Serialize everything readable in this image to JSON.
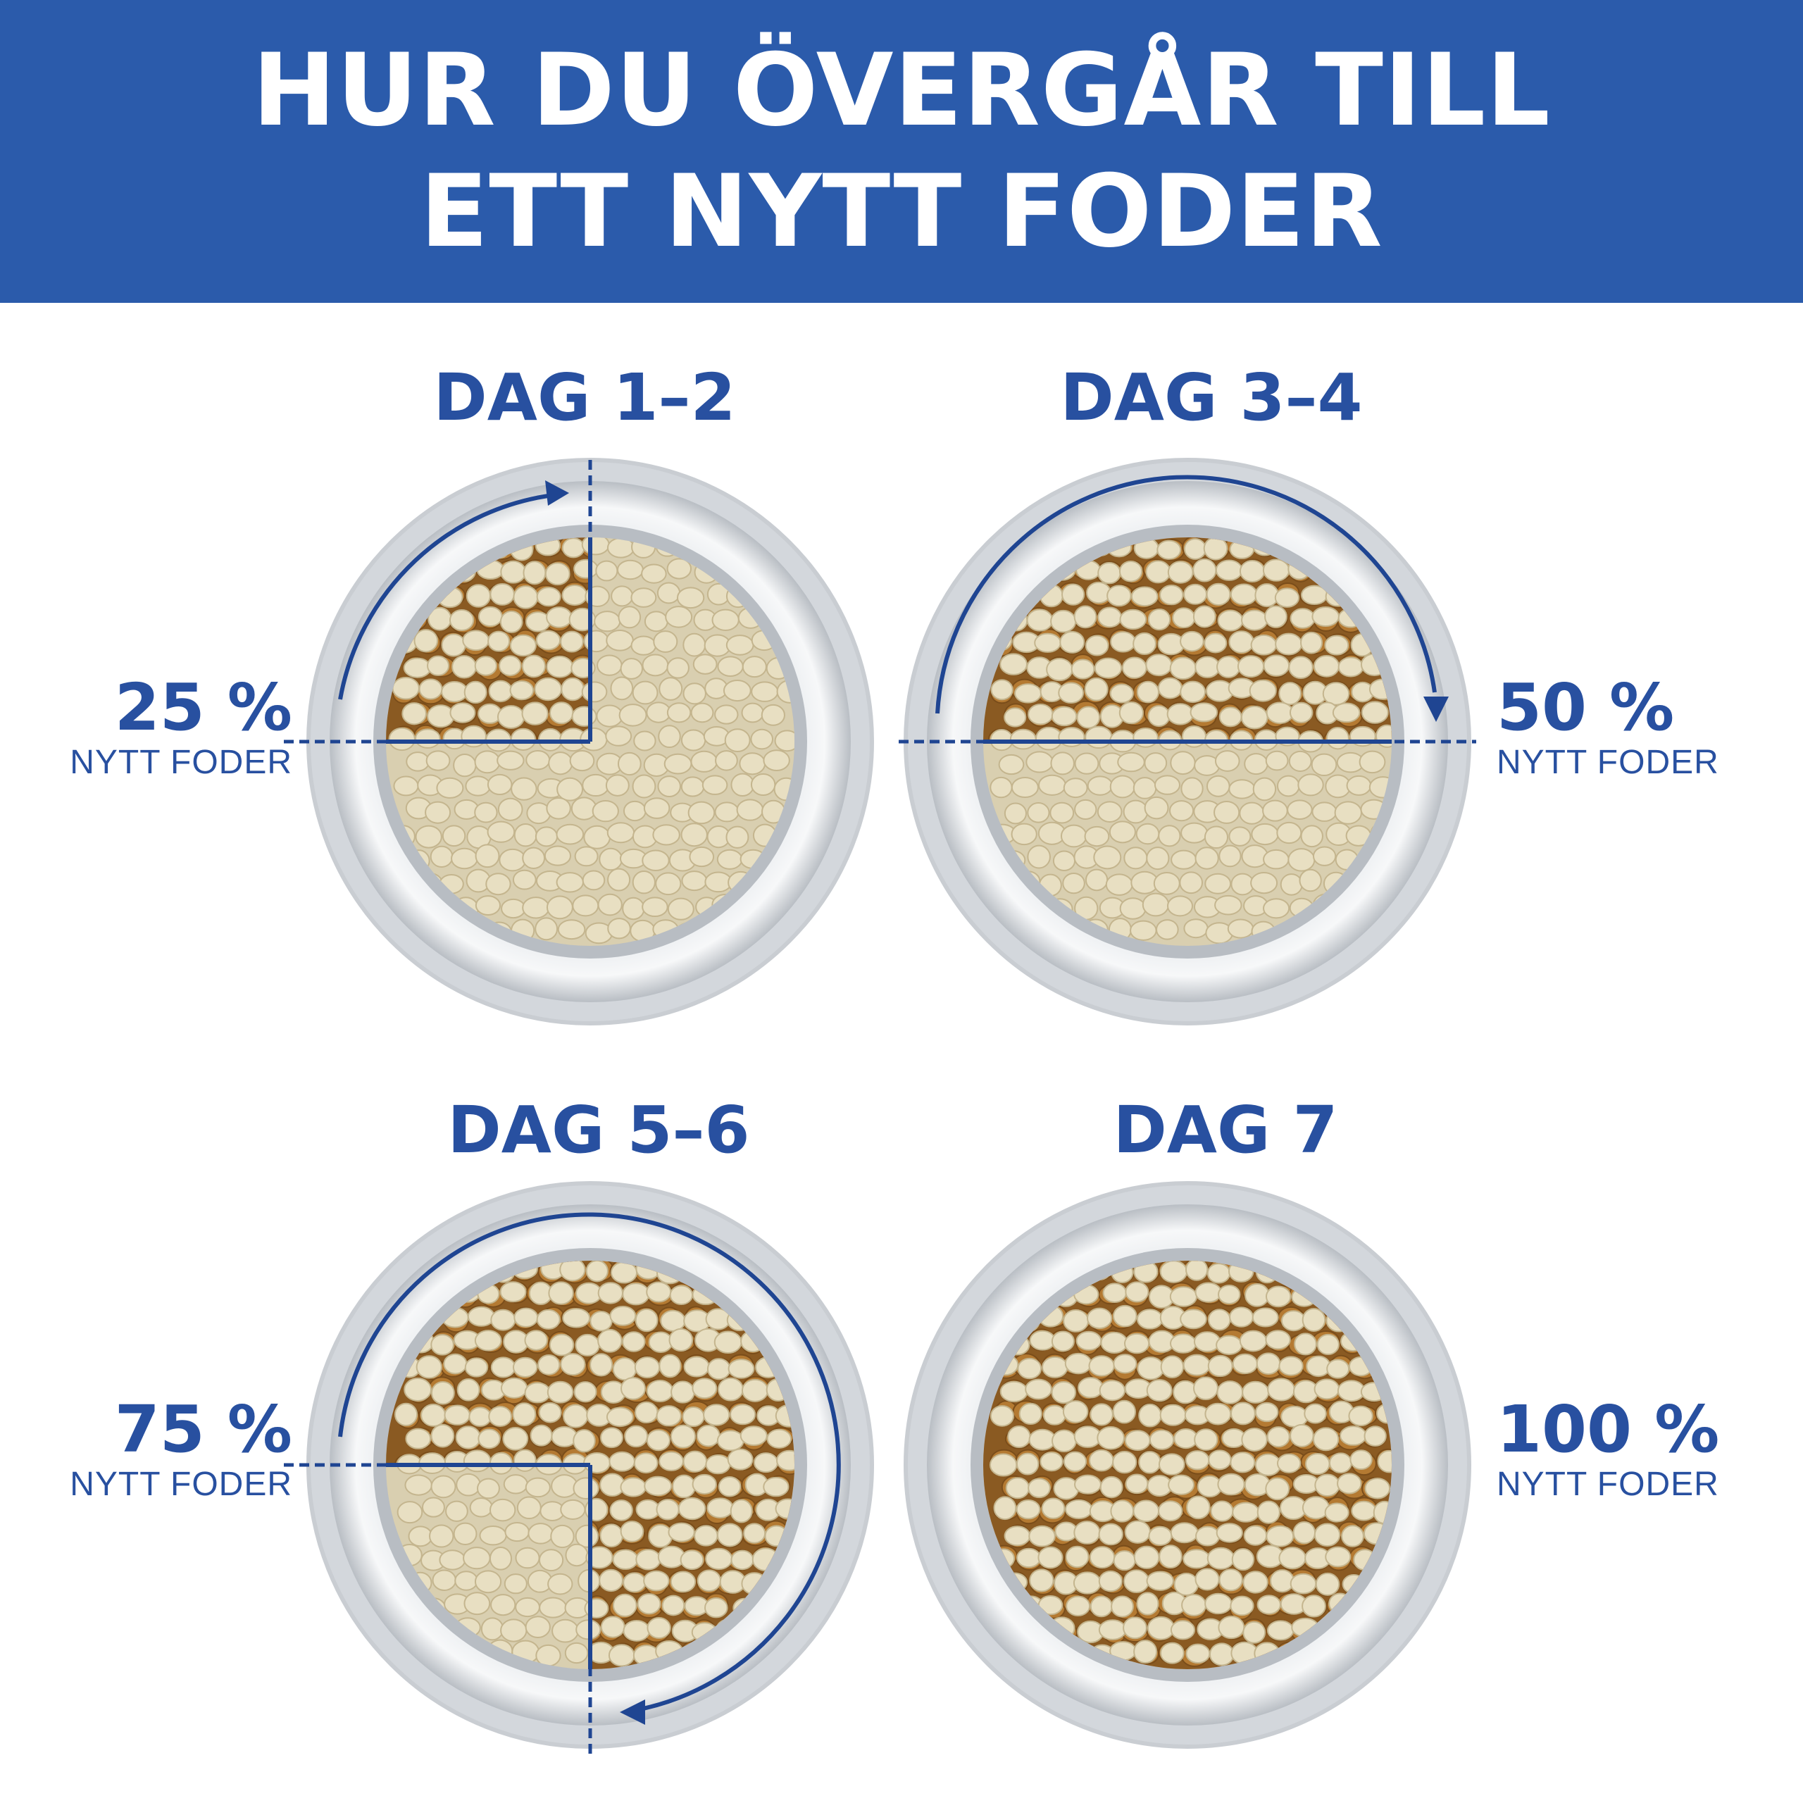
{
  "header": {
    "title_line1": "HUR DU ÖVERGÅR TILL",
    "title_line2": "ETT NYTT FODER"
  },
  "steps": [
    {
      "day": "DAG 1–2",
      "percent": "25 %",
      "caption": "NYTT FODER",
      "new_fraction": 0.25
    },
    {
      "day": "DAG 3–4",
      "percent": "50 %",
      "caption": "NYTT FODER",
      "new_fraction": 0.5
    },
    {
      "day": "DAG 5–6",
      "percent": "75 %",
      "caption": "NYTT FODER",
      "new_fraction": 0.75
    },
    {
      "day": "DAG 7",
      "percent": "100 %",
      "caption": "NYTT FODER",
      "new_fraction": 1.0
    }
  ],
  "colors": {
    "banner": "#2b5bab",
    "accent_text": "#2850a0",
    "indicator_line": "#1f4592",
    "new_food": "#b47a32",
    "old_food": "#d9cfb0",
    "bowl_rim": "#c9cdd2"
  }
}
